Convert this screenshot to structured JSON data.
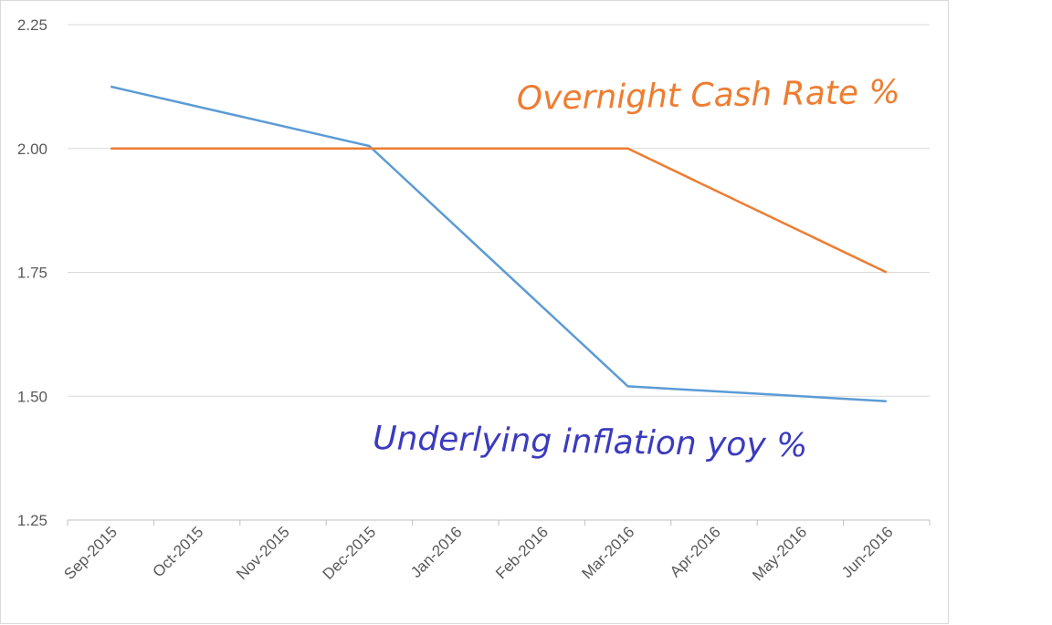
{
  "chart_data": {
    "type": "line",
    "categories": [
      "Sep-2015",
      "Oct-2015",
      "Nov-2015",
      "Dec-2015",
      "Jan-2016",
      "Feb-2016",
      "Mar-2016",
      "Apr-2016",
      "May-2016",
      "Jun-2016"
    ],
    "series": [
      {
        "name": "",
        "color": "#5b9bd5",
        "points": [
          {
            "x": "Sep-2015",
            "y": 2.125
          },
          {
            "x": "Dec-2015",
            "y": 2.005
          },
          {
            "x": "Mar-2016",
            "y": 1.52
          },
          {
            "x": "Jun-2016",
            "y": 1.49
          }
        ]
      },
      {
        "name": "",
        "color": "#ed7d31",
        "points": [
          {
            "x": "Sep-2015",
            "y": 2.0
          },
          {
            "x": "Dec-2015",
            "y": 2.0
          },
          {
            "x": "Mar-2016",
            "y": 2.0
          },
          {
            "x": "Jun-2016",
            "y": 1.75
          }
        ]
      }
    ],
    "ylim": [
      1.25,
      2.25
    ],
    "yticks": [
      "1.25",
      "1.50",
      "1.75",
      "2.00",
      "2.25"
    ],
    "grid": true,
    "annotations": [
      {
        "id": "cash-rate",
        "text": "Overnight Cash Rate %",
        "color": "#ed7d31"
      },
      {
        "id": "inflation",
        "text": "Underlying inflation yoy %",
        "color": "#3b3bbf"
      }
    ]
  }
}
